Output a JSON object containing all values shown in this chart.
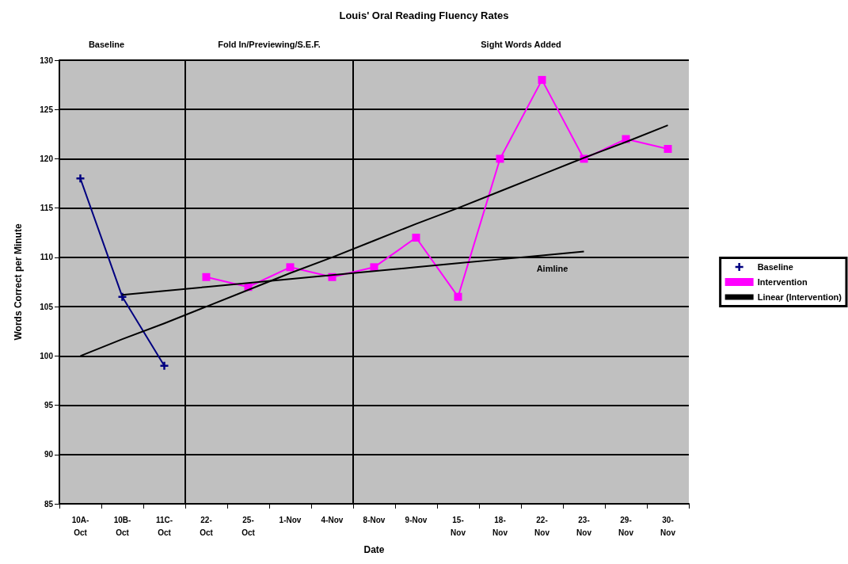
{
  "chart_data": {
    "type": "line",
    "title": "Louis' Oral Reading Fluency Rates",
    "xlabel": "Date",
    "ylabel": "Words Correct per Minute",
    "categories": [
      "10A-Oct",
      "10B-Oct",
      "11C-Oct",
      "22-Oct",
      "25-Oct",
      "1-Nov",
      "4-Nov",
      "8-Nov",
      "9-Nov",
      "15-Nov",
      "18-Nov",
      "22-Nov",
      "23-Nov",
      "29-Nov",
      "30-Nov"
    ],
    "series": [
      {
        "name": "Baseline",
        "color": "#000080",
        "marker": "cross",
        "values": [
          118,
          106,
          99,
          null,
          null,
          null,
          null,
          null,
          null,
          null,
          null,
          null,
          null,
          null,
          null
        ]
      },
      {
        "name": "Intervention",
        "color": "#ff00ff",
        "marker": "square",
        "values": [
          null,
          null,
          null,
          108,
          107,
          109,
          108,
          109,
          112,
          106,
          120,
          128,
          120,
          122,
          121
        ]
      },
      {
        "name": "Linear (Intervention)",
        "color": "#000000",
        "marker": "none",
        "values": [
          100,
          101.7,
          103.3,
          105,
          106.7,
          108.4,
          110,
          111.7,
          113.4,
          115,
          116.7,
          118.4,
          120.1,
          121.7,
          123.4
        ]
      },
      {
        "color": "#000000",
        "marker": "none",
        "values": [
          null,
          106.2,
          106.6,
          107,
          107.4,
          107.8,
          108.2,
          108.6,
          109,
          109.4,
          109.8,
          110.2,
          110.6,
          null,
          null
        ]
      }
    ],
    "annotations": [
      "Aimline"
    ],
    "bands": [
      {
        "axis": "x",
        "from": "10A-Oct",
        "to": "11C-Oct",
        "label": "Baseline",
        "color": "#c0c0c0"
      },
      {
        "axis": "x",
        "from": "22-Oct",
        "to": "4-Nov",
        "label": "Fold In/Previewing/S.E.F.",
        "color": "#c0c0c0"
      },
      {
        "axis": "x",
        "from": "8-Nov",
        "to": "30-Nov",
        "label": "Sight Words Added",
        "color": "#c0c0c0"
      }
    ],
    "ylim": [
      85,
      130
    ],
    "yticks": [
      85,
      90,
      95,
      100,
      105,
      110,
      115,
      120,
      125,
      130
    ],
    "grid": "y",
    "legend": "right"
  }
}
